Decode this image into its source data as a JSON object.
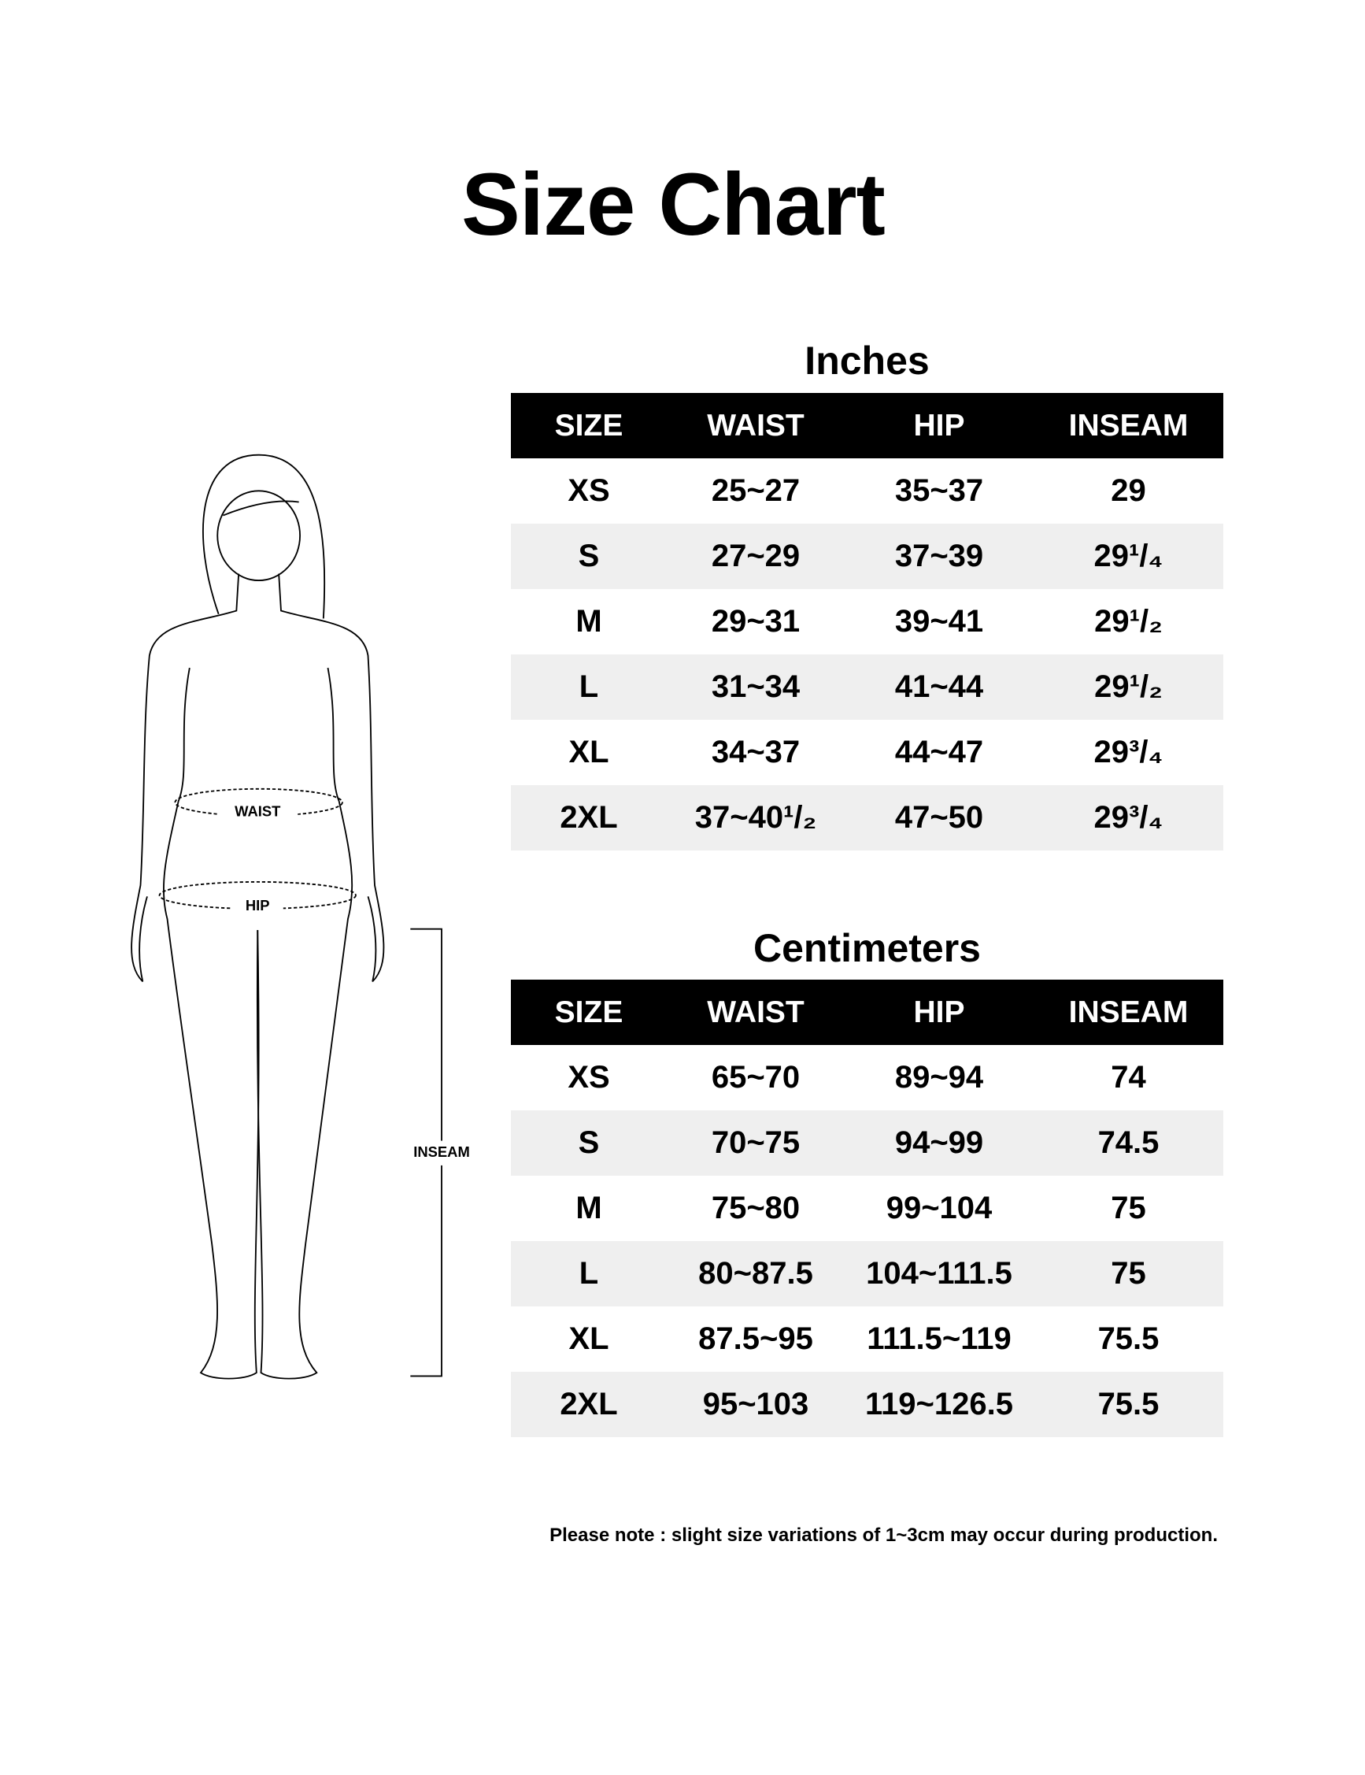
{
  "title": "Size Chart",
  "figure": {
    "labels": {
      "waist": "WAIST",
      "hip": "HIP",
      "inseam": "INSEAM"
    }
  },
  "tables": [
    {
      "heading": "Inches",
      "columns": [
        "SIZE",
        "WAIST",
        "HIP",
        "INSEAM"
      ],
      "rows": [
        [
          "XS",
          "25~27",
          "35~37",
          "29"
        ],
        [
          "S",
          "27~29",
          "37~39",
          "29¹/₄"
        ],
        [
          "M",
          "29~31",
          "39~41",
          "29¹/₂"
        ],
        [
          "L",
          "31~34",
          "41~44",
          "29¹/₂"
        ],
        [
          "XL",
          "34~37",
          "44~47",
          "29³/₄"
        ],
        [
          "2XL",
          "37~40¹/₂",
          "47~50",
          "29³/₄"
        ]
      ]
    },
    {
      "heading": "Centimeters",
      "columns": [
        "SIZE",
        "WAIST",
        "HIP",
        "INSEAM"
      ],
      "rows": [
        [
          "XS",
          "65~70",
          "89~94",
          "74"
        ],
        [
          "S",
          "70~75",
          "94~99",
          "74.5"
        ],
        [
          "M",
          "75~80",
          "99~104",
          "75"
        ],
        [
          "L",
          "80~87.5",
          "104~111.5",
          "75"
        ],
        [
          "XL",
          "87.5~95",
          "111.5~119",
          "75.5"
        ],
        [
          "2XL",
          "95~103",
          "119~126.5",
          "75.5"
        ]
      ]
    }
  ],
  "note": "Please note : slight size variations of 1~3cm may occur during production."
}
